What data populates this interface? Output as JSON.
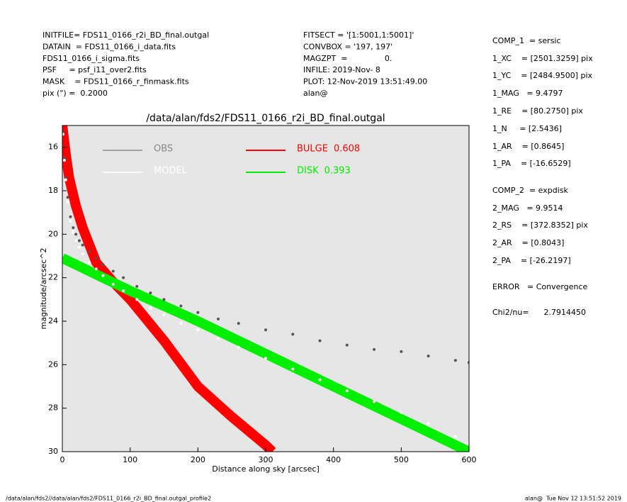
{
  "info_left": [
    "INITFILE= FDS11_0166_r2i_BD_final.outgal",
    "DATAIN  = FDS11_0166_i_data.fits",
    "FDS11_0166_i_sigma.fits",
    "PSF     = psf_i11_over2.fits",
    "MASK    = FDS11_0166_r_finmask.fits",
    "pix (\") =  0.2000"
  ],
  "info_middle": [
    "FITSECT = '[1:5001,1:5001]'",
    "CONVBOX = '197, 197'",
    "MAGZPT  =               0.",
    "INFILE: 2019-Nov- 8",
    "PLOT: 12-Nov-2019 13:51:49.00",
    "alan@"
  ],
  "parameters": [
    "COMP_1  = sersic",
    "1_XC    = [2501.3259] pix",
    "1_YC    = [2484.9500] pix",
    "1_MAG   = 9.4797",
    "1_RE    = [80.2750] pix",
    "1_N     = [2.5436]",
    "1_AR    = [0.8645]",
    "1_PA    = [-16.6529]",
    "COMP_2  = expdisk",
    "2_MAG   = 9.9514",
    "2_RS    = [372.8352] pix",
    "2_AR    = [0.8043]",
    "2_PA    = [-26.2197]",
    "ERROR   = Convergence",
    "Chi2/nu=      2.7914450"
  ],
  "footer_left": "/data/alan/fds2//data/alan/fds2/FDS11_0166_r2i_BD_final.outgal_profile2",
  "footer_right": "alan@  Tue Nov 12 13:51:52 2019",
  "chart_data": {
    "type": "scatter",
    "title": "/data/alan/fds2/FDS11_0166_r2i_BD_final.outgal",
    "xlabel": "Distance along sky [arcsec]",
    "ylabel": "magnitude/arcsec^2",
    "xlim": [
      0,
      600
    ],
    "ylim": [
      30,
      15
    ],
    "xticks": [
      0,
      100,
      200,
      300,
      400,
      500,
      600
    ],
    "yticks": [
      16,
      18,
      20,
      22,
      24,
      26,
      28,
      30
    ],
    "legend": "top",
    "series": [
      {
        "name": "OBS",
        "color": "#555555",
        "legend_color": "#888888",
        "style": "points",
        "x": [
          1,
          3,
          5,
          8,
          12,
          16,
          20,
          25,
          30,
          40,
          50,
          60,
          75,
          90,
          110,
          130,
          150,
          175,
          200,
          230,
          260,
          300,
          340,
          380,
          420,
          460,
          500,
          540,
          580,
          600
        ],
        "values": [
          15.3,
          16.5,
          17.4,
          18.3,
          19.2,
          19.7,
          20.0,
          20.3,
          20.5,
          20.8,
          21.1,
          21.4,
          21.7,
          22.0,
          22.4,
          22.7,
          23.0,
          23.3,
          23.6,
          23.9,
          24.1,
          24.4,
          24.6,
          24.9,
          25.1,
          25.3,
          25.4,
          25.6,
          25.8,
          25.9
        ]
      },
      {
        "name": "MODEL",
        "color": "#ffffff",
        "legend_color": "#ffffff",
        "style": "points",
        "x": [
          1,
          3,
          5,
          8,
          12,
          16,
          20,
          25,
          30,
          40,
          50,
          60,
          75,
          90,
          110,
          130,
          150,
          175,
          200,
          230,
          260,
          300,
          340,
          380,
          420,
          460,
          500,
          540,
          580,
          600
        ],
        "values": [
          15.4,
          16.6,
          17.5,
          18.5,
          19.4,
          19.9,
          20.3,
          20.6,
          20.9,
          21.3,
          21.6,
          21.9,
          22.3,
          22.6,
          23.0,
          23.4,
          23.7,
          24.1,
          24.4,
          24.8,
          25.2,
          25.7,
          26.2,
          26.7,
          27.2,
          27.7,
          28.2,
          28.7,
          29.3,
          29.6
        ]
      },
      {
        "name": "BULGE",
        "fraction": 0.608,
        "color": "#ff0000",
        "legend_color": "#ff0000",
        "style": "band",
        "x": [
          0,
          5,
          10,
          20,
          30,
          50,
          75,
          100,
          150,
          200,
          250,
          300,
          310
        ],
        "values": [
          15.0,
          16.3,
          17.4,
          18.7,
          19.7,
          21.3,
          22.2,
          23.0,
          24.9,
          27.0,
          28.4,
          29.7,
          30.0
        ]
      },
      {
        "name": "DISK",
        "fraction": 0.393,
        "color": "#00ee00",
        "legend_color": "#00ee00",
        "style": "band",
        "x": [
          0,
          100,
          200,
          300,
          400,
          500,
          600
        ],
        "values": [
          21.1,
          22.6,
          24.0,
          25.5,
          27.0,
          28.5,
          30.0
        ]
      }
    ]
  }
}
